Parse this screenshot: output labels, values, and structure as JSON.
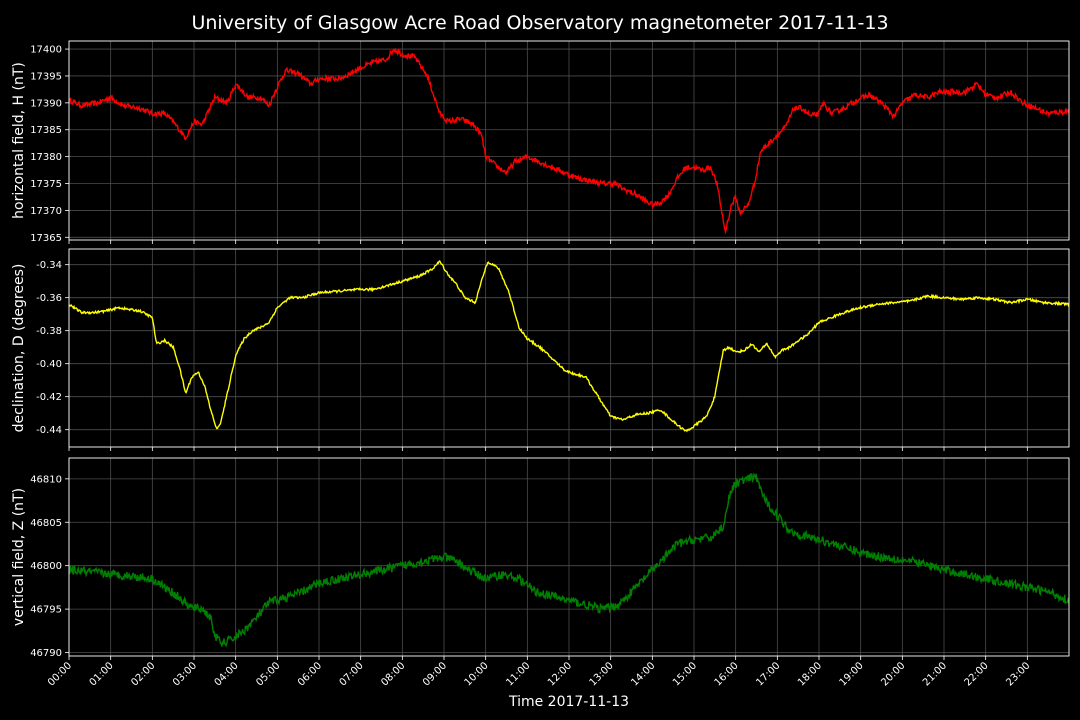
{
  "chart_data": {
    "type": "line",
    "title": "University of Glasgow Acre Road Observatory magnetometer 2017-11-13",
    "xlabel": "Time 2017-11-13",
    "x_ticks": [
      "00:00",
      "01:00",
      "02:00",
      "03:00",
      "04:00",
      "05:00",
      "06:00",
      "07:00",
      "08:00",
      "09:00",
      "10:00",
      "11:00",
      "12:00",
      "13:00",
      "14:00",
      "15:00",
      "16:00",
      "17:00",
      "18:00",
      "19:00",
      "20:00",
      "21:00",
      "22:00",
      "23:00"
    ],
    "xlim": [
      0,
      24
    ],
    "grid": true,
    "background": "#000000",
    "panels": [
      {
        "ylabel": "horizontal field, H (nT)",
        "color": "#ff0000",
        "ylim": [
          17364.5,
          17401.5
        ],
        "yticks": [
          17365,
          17370,
          17375,
          17380,
          17385,
          17390,
          17395,
          17400
        ],
        "tick_decimals": 0,
        "noise": 0.5,
        "points": [
          [
            0.0,
            17390.5
          ],
          [
            0.3,
            17389.5
          ],
          [
            0.7,
            17390
          ],
          [
            1.0,
            17391
          ],
          [
            1.3,
            17389.5
          ],
          [
            1.7,
            17389
          ],
          [
            2.0,
            17388
          ],
          [
            2.3,
            17388
          ],
          [
            2.5,
            17386.5
          ],
          [
            2.8,
            17383.5
          ],
          [
            3.0,
            17386.5
          ],
          [
            3.2,
            17386
          ],
          [
            3.5,
            17391
          ],
          [
            3.8,
            17390
          ],
          [
            4.0,
            17393.5
          ],
          [
            4.3,
            17391
          ],
          [
            4.6,
            17391
          ],
          [
            4.8,
            17389.5
          ],
          [
            5.0,
            17393
          ],
          [
            5.2,
            17396
          ],
          [
            5.5,
            17395.5
          ],
          [
            5.8,
            17393.5
          ],
          [
            6.0,
            17394.5
          ],
          [
            6.5,
            17394.5
          ],
          [
            7.0,
            17396.5
          ],
          [
            7.3,
            17397.5
          ],
          [
            7.6,
            17398
          ],
          [
            7.8,
            17400
          ],
          [
            8.0,
            17399
          ],
          [
            8.3,
            17398.5
          ],
          [
            8.6,
            17395
          ],
          [
            8.9,
            17388
          ],
          [
            9.1,
            17386.5
          ],
          [
            9.4,
            17387
          ],
          [
            9.7,
            17386
          ],
          [
            9.9,
            17384
          ],
          [
            10.0,
            17380
          ],
          [
            10.3,
            17378
          ],
          [
            10.5,
            17377
          ],
          [
            10.7,
            17379
          ],
          [
            11.0,
            17380
          ],
          [
            11.3,
            17379
          ],
          [
            11.6,
            17378
          ],
          [
            11.9,
            17377
          ],
          [
            12.2,
            17376
          ],
          [
            12.5,
            17375.5
          ],
          [
            12.8,
            17375
          ],
          [
            13.1,
            17375
          ],
          [
            13.3,
            17374
          ],
          [
            13.6,
            17373
          ],
          [
            13.8,
            17372
          ],
          [
            14.0,
            17371
          ],
          [
            14.2,
            17371.5
          ],
          [
            14.4,
            17373
          ],
          [
            14.6,
            17376
          ],
          [
            14.8,
            17378
          ],
          [
            15.0,
            17378
          ],
          [
            15.2,
            17377.5
          ],
          [
            15.4,
            17378
          ],
          [
            15.55,
            17375
          ],
          [
            15.75,
            17366
          ],
          [
            15.9,
            17371
          ],
          [
            16.0,
            17372.5
          ],
          [
            16.1,
            17369.5
          ],
          [
            16.3,
            17371
          ],
          [
            16.45,
            17375
          ],
          [
            16.6,
            17381
          ],
          [
            16.8,
            17382.5
          ],
          [
            17.0,
            17384
          ],
          [
            17.2,
            17385.5
          ],
          [
            17.4,
            17389
          ],
          [
            17.6,
            17389
          ],
          [
            17.8,
            17387.5
          ],
          [
            18.0,
            17388
          ],
          [
            18.1,
            17390
          ],
          [
            18.3,
            17388
          ],
          [
            18.6,
            17389
          ],
          [
            18.9,
            17390.5
          ],
          [
            19.2,
            17391.5
          ],
          [
            19.5,
            17390
          ],
          [
            19.8,
            17387.5
          ],
          [
            20.0,
            17390
          ],
          [
            20.3,
            17391.5
          ],
          [
            20.6,
            17391
          ],
          [
            20.9,
            17392
          ],
          [
            21.2,
            17392
          ],
          [
            21.5,
            17392
          ],
          [
            21.8,
            17393.5
          ],
          [
            22.0,
            17391.5
          ],
          [
            22.3,
            17391
          ],
          [
            22.6,
            17392
          ],
          [
            22.9,
            17390
          ],
          [
            23.2,
            17389
          ],
          [
            23.5,
            17388
          ],
          [
            24.0,
            17388.5
          ]
        ]
      },
      {
        "ylabel": "declination, D (degrees)",
        "color": "#ffff00",
        "ylim": [
          -0.4505,
          -0.3305
        ],
        "yticks": [
          -0.44,
          -0.42,
          -0.4,
          -0.38,
          -0.36,
          -0.34
        ],
        "tick_decimals": 2,
        "noise": 0.0007,
        "points": [
          [
            0.0,
            -0.364
          ],
          [
            0.3,
            -0.369
          ],
          [
            0.6,
            -0.369
          ],
          [
            0.9,
            -0.368
          ],
          [
            1.2,
            -0.366
          ],
          [
            1.4,
            -0.367
          ],
          [
            1.7,
            -0.368
          ],
          [
            2.0,
            -0.372
          ],
          [
            2.1,
            -0.388
          ],
          [
            2.3,
            -0.386
          ],
          [
            2.5,
            -0.39
          ],
          [
            2.65,
            -0.402
          ],
          [
            2.8,
            -0.418
          ],
          [
            2.95,
            -0.408
          ],
          [
            3.1,
            -0.405
          ],
          [
            3.25,
            -0.413
          ],
          [
            3.4,
            -0.428
          ],
          [
            3.55,
            -0.44
          ],
          [
            3.65,
            -0.435
          ],
          [
            3.8,
            -0.418
          ],
          [
            4.0,
            -0.395
          ],
          [
            4.2,
            -0.385
          ],
          [
            4.4,
            -0.38
          ],
          [
            4.6,
            -0.378
          ],
          [
            4.8,
            -0.375
          ],
          [
            5.0,
            -0.366
          ],
          [
            5.3,
            -0.36
          ],
          [
            5.6,
            -0.36
          ],
          [
            6.0,
            -0.357
          ],
          [
            6.5,
            -0.356
          ],
          [
            7.0,
            -0.355
          ],
          [
            7.3,
            -0.355
          ],
          [
            7.6,
            -0.353
          ],
          [
            8.0,
            -0.35
          ],
          [
            8.4,
            -0.347
          ],
          [
            8.7,
            -0.343
          ],
          [
            8.9,
            -0.338
          ],
          [
            9.1,
            -0.346
          ],
          [
            9.3,
            -0.352
          ],
          [
            9.5,
            -0.36
          ],
          [
            9.75,
            -0.363
          ],
          [
            9.9,
            -0.35
          ],
          [
            10.05,
            -0.338
          ],
          [
            10.3,
            -0.342
          ],
          [
            10.55,
            -0.356
          ],
          [
            10.8,
            -0.378
          ],
          [
            11.0,
            -0.385
          ],
          [
            11.3,
            -0.39
          ],
          [
            11.6,
            -0.397
          ],
          [
            11.9,
            -0.404
          ],
          [
            12.1,
            -0.406
          ],
          [
            12.4,
            -0.408
          ],
          [
            12.7,
            -0.42
          ],
          [
            13.0,
            -0.432
          ],
          [
            13.3,
            -0.434
          ],
          [
            13.6,
            -0.431
          ],
          [
            13.9,
            -0.43
          ],
          [
            14.2,
            -0.428
          ],
          [
            14.5,
            -0.435
          ],
          [
            14.8,
            -0.441
          ],
          [
            15.0,
            -0.438
          ],
          [
            15.3,
            -0.432
          ],
          [
            15.5,
            -0.42
          ],
          [
            15.7,
            -0.392
          ],
          [
            15.85,
            -0.39
          ],
          [
            16.0,
            -0.393
          ],
          [
            16.2,
            -0.392
          ],
          [
            16.4,
            -0.388
          ],
          [
            16.55,
            -0.393
          ],
          [
            16.75,
            -0.388
          ],
          [
            16.95,
            -0.396
          ],
          [
            17.1,
            -0.392
          ],
          [
            17.3,
            -0.39
          ],
          [
            17.5,
            -0.386
          ],
          [
            17.7,
            -0.383
          ],
          [
            18.0,
            -0.375
          ],
          [
            18.3,
            -0.372
          ],
          [
            18.6,
            -0.369
          ],
          [
            19.0,
            -0.366
          ],
          [
            19.4,
            -0.364
          ],
          [
            19.8,
            -0.363
          ],
          [
            20.2,
            -0.362
          ],
          [
            20.6,
            -0.359
          ],
          [
            21.0,
            -0.36
          ],
          [
            21.4,
            -0.361
          ],
          [
            21.8,
            -0.36
          ],
          [
            22.2,
            -0.361
          ],
          [
            22.6,
            -0.363
          ],
          [
            23.0,
            -0.361
          ],
          [
            23.4,
            -0.363
          ],
          [
            24.0,
            -0.364
          ]
        ]
      },
      {
        "ylabel": "vertical field, Z (nT)",
        "color": "#008000",
        "ylim": [
          46789.6,
          46812.4
        ],
        "yticks": [
          46790,
          46795,
          46800,
          46805,
          46810
        ],
        "tick_decimals": 0,
        "noise": 0.5,
        "points": [
          [
            0.0,
            46799.5
          ],
          [
            0.5,
            46799.3
          ],
          [
            1.0,
            46799
          ],
          [
            1.5,
            46798.8
          ],
          [
            2.0,
            46798.5
          ],
          [
            2.3,
            46797.5
          ],
          [
            2.6,
            46796.5
          ],
          [
            2.9,
            46795.2
          ],
          [
            3.2,
            46795
          ],
          [
            3.4,
            46794
          ],
          [
            3.5,
            46792
          ],
          [
            3.65,
            46791
          ],
          [
            3.9,
            46791.5
          ],
          [
            4.2,
            46792.5
          ],
          [
            4.5,
            46794
          ],
          [
            4.8,
            46795.8
          ],
          [
            5.2,
            46796.3
          ],
          [
            5.6,
            46797
          ],
          [
            6.0,
            46798
          ],
          [
            6.5,
            46798.5
          ],
          [
            7.0,
            46799
          ],
          [
            7.5,
            46799.5
          ],
          [
            8.0,
            46800
          ],
          [
            8.5,
            46800.5
          ],
          [
            9.0,
            46801
          ],
          [
            9.3,
            46800.5
          ],
          [
            9.6,
            46799.5
          ],
          [
            10.0,
            46798.5
          ],
          [
            10.4,
            46799
          ],
          [
            10.8,
            46798.5
          ],
          [
            11.2,
            46797
          ],
          [
            11.6,
            46796.5
          ],
          [
            12.0,
            46796
          ],
          [
            12.4,
            46795.5
          ],
          [
            12.8,
            46795
          ],
          [
            13.2,
            46795.5
          ],
          [
            13.5,
            46797
          ],
          [
            13.8,
            46798.5
          ],
          [
            14.0,
            46799.5
          ],
          [
            14.3,
            46801
          ],
          [
            14.6,
            46802.5
          ],
          [
            15.0,
            46803
          ],
          [
            15.4,
            46803.2
          ],
          [
            15.7,
            46804.5
          ],
          [
            15.85,
            46808
          ],
          [
            16.0,
            46809.5
          ],
          [
            16.3,
            46810
          ],
          [
            16.5,
            46810.2
          ],
          [
            16.7,
            46807.5
          ],
          [
            17.0,
            46805.8
          ],
          [
            17.3,
            46804
          ],
          [
            17.6,
            46803.5
          ],
          [
            18.0,
            46803
          ],
          [
            18.5,
            46802.3
          ],
          [
            19.0,
            46801.5
          ],
          [
            19.5,
            46801
          ],
          [
            20.0,
            46800.7
          ],
          [
            20.5,
            46800.2
          ],
          [
            21.0,
            46799.5
          ],
          [
            21.5,
            46799
          ],
          [
            22.0,
            46798.5
          ],
          [
            22.5,
            46798
          ],
          [
            23.0,
            46797.5
          ],
          [
            23.5,
            46797
          ],
          [
            24.0,
            46796
          ]
        ]
      }
    ]
  }
}
